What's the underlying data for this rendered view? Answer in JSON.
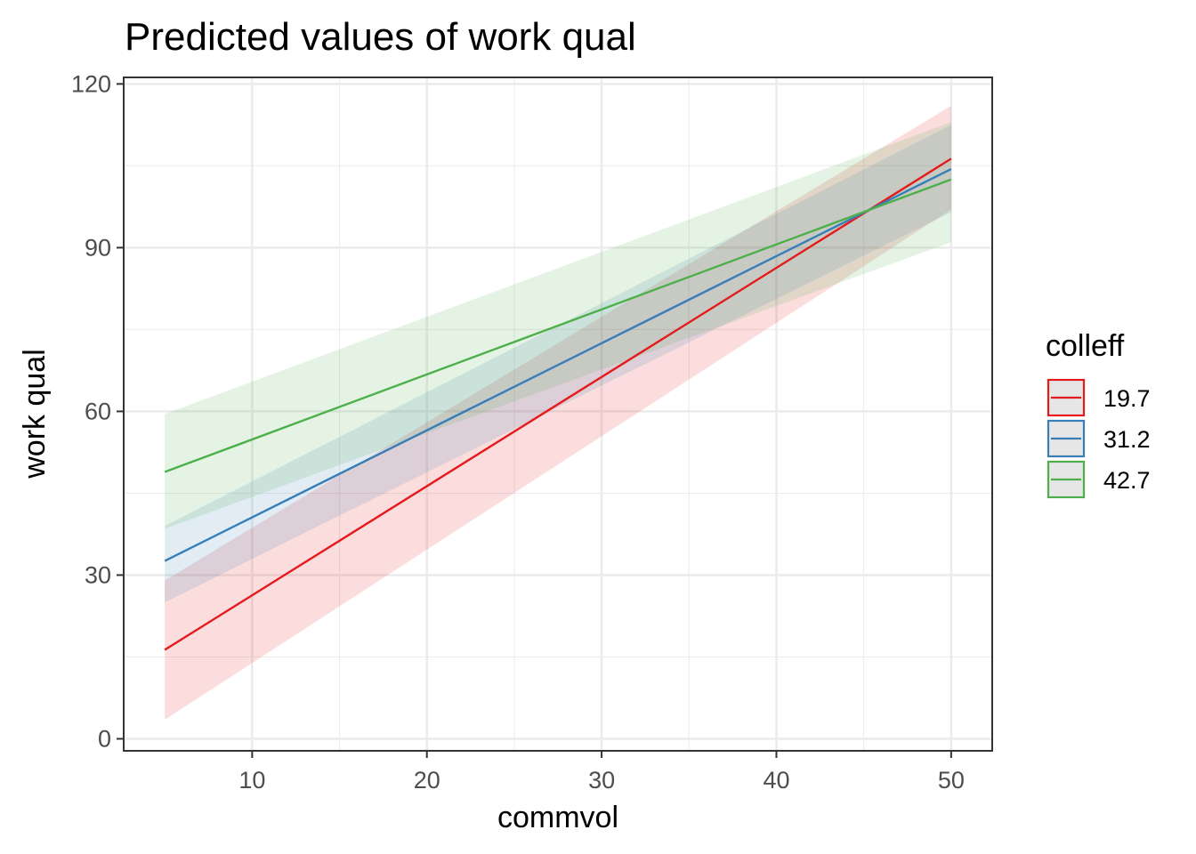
{
  "chart_data": {
    "type": "line",
    "title": "Predicted values of work qual",
    "xlabel": "commvol",
    "ylabel": "work qual",
    "xlim": [
      2.65,
      52.35
    ],
    "ylim": [
      -2.2,
      121.2
    ],
    "x_ticks": [
      10,
      20,
      30,
      40,
      50
    ],
    "y_ticks": [
      0,
      30,
      60,
      90,
      120
    ],
    "x_tick_labels": [
      "10",
      "20",
      "30",
      "40",
      "50"
    ],
    "y_tick_labels": [
      "0",
      "30",
      "60",
      "90",
      "120"
    ],
    "grid": true,
    "legend": {
      "title": "colleff",
      "position": "right"
    },
    "series": [
      {
        "name": "19.7",
        "color": "#E41A1C",
        "x": [
          5,
          50
        ],
        "y": [
          16.3,
          106.3
        ],
        "lower": [
          3.5,
          97.0
        ],
        "upper": [
          29.0,
          116.0
        ]
      },
      {
        "name": "31.2",
        "color": "#377EB8",
        "x": [
          5,
          50
        ],
        "y": [
          32.6,
          104.4
        ],
        "lower": [
          25.0,
          96.5
        ],
        "upper": [
          39.0,
          112.5
        ]
      },
      {
        "name": "42.7",
        "color": "#4DAF4A",
        "x": [
          5,
          50
        ],
        "y": [
          48.9,
          102.5
        ],
        "lower": [
          38.5,
          91.0
        ],
        "upper": [
          59.5,
          113.0
        ]
      }
    ]
  }
}
